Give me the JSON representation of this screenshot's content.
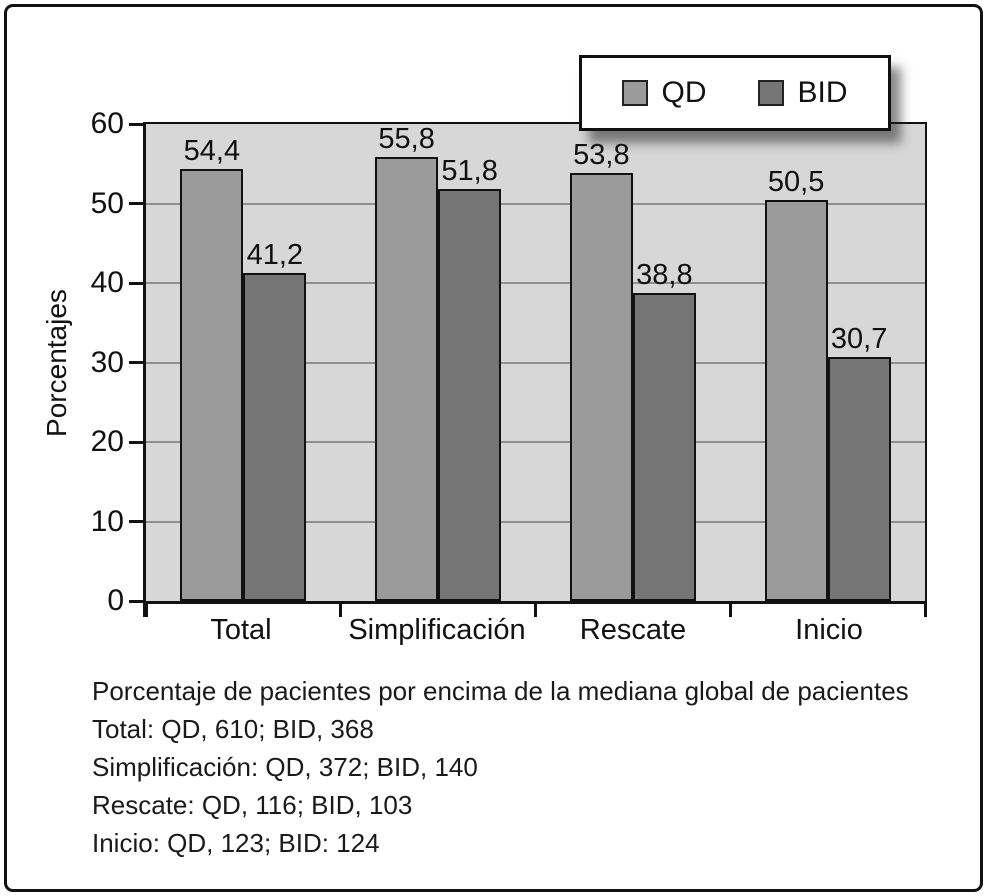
{
  "figure": {
    "ylabel": "Porcentajes",
    "caption": {
      "title": "Porcentaje de pacientes por encima de la mediana global de pacientes",
      "lines": [
        "Total: QD, 610; BID, 368",
        "Simplificación: QD, 372; BID, 140",
        "Rescate: QD, 116; BID, 103",
        "Inicio: QD, 123; BID: 124"
      ]
    },
    "colors": {
      "plot_background": "#d7d7d7",
      "gridline": "#8f8f8f",
      "axis": "#111111",
      "qd_bar": "#9b9b9b",
      "bid_bar": "#757575"
    }
  },
  "chart_data": {
    "type": "bar",
    "categories": [
      "Total",
      "Simplificación",
      "Rescate",
      "Inicio"
    ],
    "series": [
      {
        "name": "QD",
        "color": "#9b9b9b",
        "values": [
          54.4,
          55.8,
          53.8,
          50.5
        ]
      },
      {
        "name": "BID",
        "color": "#757575",
        "values": [
          41.2,
          51.8,
          38.8,
          30.7
        ]
      }
    ],
    "value_labels": [
      [
        "54,4",
        "55,8",
        "53,8",
        "50,5"
      ],
      [
        "41,2",
        "51,8",
        "38,8",
        "30,7"
      ]
    ],
    "title": "",
    "xlabel": "",
    "ylabel": "Porcentajes",
    "ylim": [
      0,
      60
    ],
    "yticks": [
      0,
      10,
      20,
      30,
      40,
      50,
      60
    ],
    "ytick_labels": [
      "0",
      "10",
      "20",
      "30",
      "40",
      "50",
      "60"
    ],
    "grid": true,
    "legend_position": "top-right"
  }
}
